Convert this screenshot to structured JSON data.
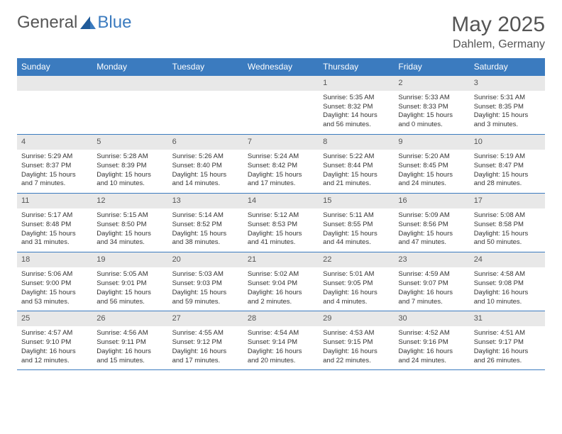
{
  "logo": {
    "text_general": "General",
    "text_blue": "Blue"
  },
  "header": {
    "title": "May 2025",
    "location": "Dahlem, Germany"
  },
  "colors": {
    "accent": "#3b7bbf",
    "header_text": "#ffffff",
    "daynum_bg": "#e8e8e8",
    "text": "#333333",
    "muted": "#555555"
  },
  "calendar": {
    "day_names": [
      "Sunday",
      "Monday",
      "Tuesday",
      "Wednesday",
      "Thursday",
      "Friday",
      "Saturday"
    ],
    "weeks": [
      [
        null,
        null,
        null,
        null,
        {
          "n": "1",
          "sunrise": "Sunrise: 5:35 AM",
          "sunset": "Sunset: 8:32 PM",
          "daylight": "Daylight: 14 hours and 56 minutes."
        },
        {
          "n": "2",
          "sunrise": "Sunrise: 5:33 AM",
          "sunset": "Sunset: 8:33 PM",
          "daylight": "Daylight: 15 hours and 0 minutes."
        },
        {
          "n": "3",
          "sunrise": "Sunrise: 5:31 AM",
          "sunset": "Sunset: 8:35 PM",
          "daylight": "Daylight: 15 hours and 3 minutes."
        }
      ],
      [
        {
          "n": "4",
          "sunrise": "Sunrise: 5:29 AM",
          "sunset": "Sunset: 8:37 PM",
          "daylight": "Daylight: 15 hours and 7 minutes."
        },
        {
          "n": "5",
          "sunrise": "Sunrise: 5:28 AM",
          "sunset": "Sunset: 8:39 PM",
          "daylight": "Daylight: 15 hours and 10 minutes."
        },
        {
          "n": "6",
          "sunrise": "Sunrise: 5:26 AM",
          "sunset": "Sunset: 8:40 PM",
          "daylight": "Daylight: 15 hours and 14 minutes."
        },
        {
          "n": "7",
          "sunrise": "Sunrise: 5:24 AM",
          "sunset": "Sunset: 8:42 PM",
          "daylight": "Daylight: 15 hours and 17 minutes."
        },
        {
          "n": "8",
          "sunrise": "Sunrise: 5:22 AM",
          "sunset": "Sunset: 8:44 PM",
          "daylight": "Daylight: 15 hours and 21 minutes."
        },
        {
          "n": "9",
          "sunrise": "Sunrise: 5:20 AM",
          "sunset": "Sunset: 8:45 PM",
          "daylight": "Daylight: 15 hours and 24 minutes."
        },
        {
          "n": "10",
          "sunrise": "Sunrise: 5:19 AM",
          "sunset": "Sunset: 8:47 PM",
          "daylight": "Daylight: 15 hours and 28 minutes."
        }
      ],
      [
        {
          "n": "11",
          "sunrise": "Sunrise: 5:17 AM",
          "sunset": "Sunset: 8:48 PM",
          "daylight": "Daylight: 15 hours and 31 minutes."
        },
        {
          "n": "12",
          "sunrise": "Sunrise: 5:15 AM",
          "sunset": "Sunset: 8:50 PM",
          "daylight": "Daylight: 15 hours and 34 minutes."
        },
        {
          "n": "13",
          "sunrise": "Sunrise: 5:14 AM",
          "sunset": "Sunset: 8:52 PM",
          "daylight": "Daylight: 15 hours and 38 minutes."
        },
        {
          "n": "14",
          "sunrise": "Sunrise: 5:12 AM",
          "sunset": "Sunset: 8:53 PM",
          "daylight": "Daylight: 15 hours and 41 minutes."
        },
        {
          "n": "15",
          "sunrise": "Sunrise: 5:11 AM",
          "sunset": "Sunset: 8:55 PM",
          "daylight": "Daylight: 15 hours and 44 minutes."
        },
        {
          "n": "16",
          "sunrise": "Sunrise: 5:09 AM",
          "sunset": "Sunset: 8:56 PM",
          "daylight": "Daylight: 15 hours and 47 minutes."
        },
        {
          "n": "17",
          "sunrise": "Sunrise: 5:08 AM",
          "sunset": "Sunset: 8:58 PM",
          "daylight": "Daylight: 15 hours and 50 minutes."
        }
      ],
      [
        {
          "n": "18",
          "sunrise": "Sunrise: 5:06 AM",
          "sunset": "Sunset: 9:00 PM",
          "daylight": "Daylight: 15 hours and 53 minutes."
        },
        {
          "n": "19",
          "sunrise": "Sunrise: 5:05 AM",
          "sunset": "Sunset: 9:01 PM",
          "daylight": "Daylight: 15 hours and 56 minutes."
        },
        {
          "n": "20",
          "sunrise": "Sunrise: 5:03 AM",
          "sunset": "Sunset: 9:03 PM",
          "daylight": "Daylight: 15 hours and 59 minutes."
        },
        {
          "n": "21",
          "sunrise": "Sunrise: 5:02 AM",
          "sunset": "Sunset: 9:04 PM",
          "daylight": "Daylight: 16 hours and 2 minutes."
        },
        {
          "n": "22",
          "sunrise": "Sunrise: 5:01 AM",
          "sunset": "Sunset: 9:05 PM",
          "daylight": "Daylight: 16 hours and 4 minutes."
        },
        {
          "n": "23",
          "sunrise": "Sunrise: 4:59 AM",
          "sunset": "Sunset: 9:07 PM",
          "daylight": "Daylight: 16 hours and 7 minutes."
        },
        {
          "n": "24",
          "sunrise": "Sunrise: 4:58 AM",
          "sunset": "Sunset: 9:08 PM",
          "daylight": "Daylight: 16 hours and 10 minutes."
        }
      ],
      [
        {
          "n": "25",
          "sunrise": "Sunrise: 4:57 AM",
          "sunset": "Sunset: 9:10 PM",
          "daylight": "Daylight: 16 hours and 12 minutes."
        },
        {
          "n": "26",
          "sunrise": "Sunrise: 4:56 AM",
          "sunset": "Sunset: 9:11 PM",
          "daylight": "Daylight: 16 hours and 15 minutes."
        },
        {
          "n": "27",
          "sunrise": "Sunrise: 4:55 AM",
          "sunset": "Sunset: 9:12 PM",
          "daylight": "Daylight: 16 hours and 17 minutes."
        },
        {
          "n": "28",
          "sunrise": "Sunrise: 4:54 AM",
          "sunset": "Sunset: 9:14 PM",
          "daylight": "Daylight: 16 hours and 20 minutes."
        },
        {
          "n": "29",
          "sunrise": "Sunrise: 4:53 AM",
          "sunset": "Sunset: 9:15 PM",
          "daylight": "Daylight: 16 hours and 22 minutes."
        },
        {
          "n": "30",
          "sunrise": "Sunrise: 4:52 AM",
          "sunset": "Sunset: 9:16 PM",
          "daylight": "Daylight: 16 hours and 24 minutes."
        },
        {
          "n": "31",
          "sunrise": "Sunrise: 4:51 AM",
          "sunset": "Sunset: 9:17 PM",
          "daylight": "Daylight: 16 hours and 26 minutes."
        }
      ]
    ]
  }
}
